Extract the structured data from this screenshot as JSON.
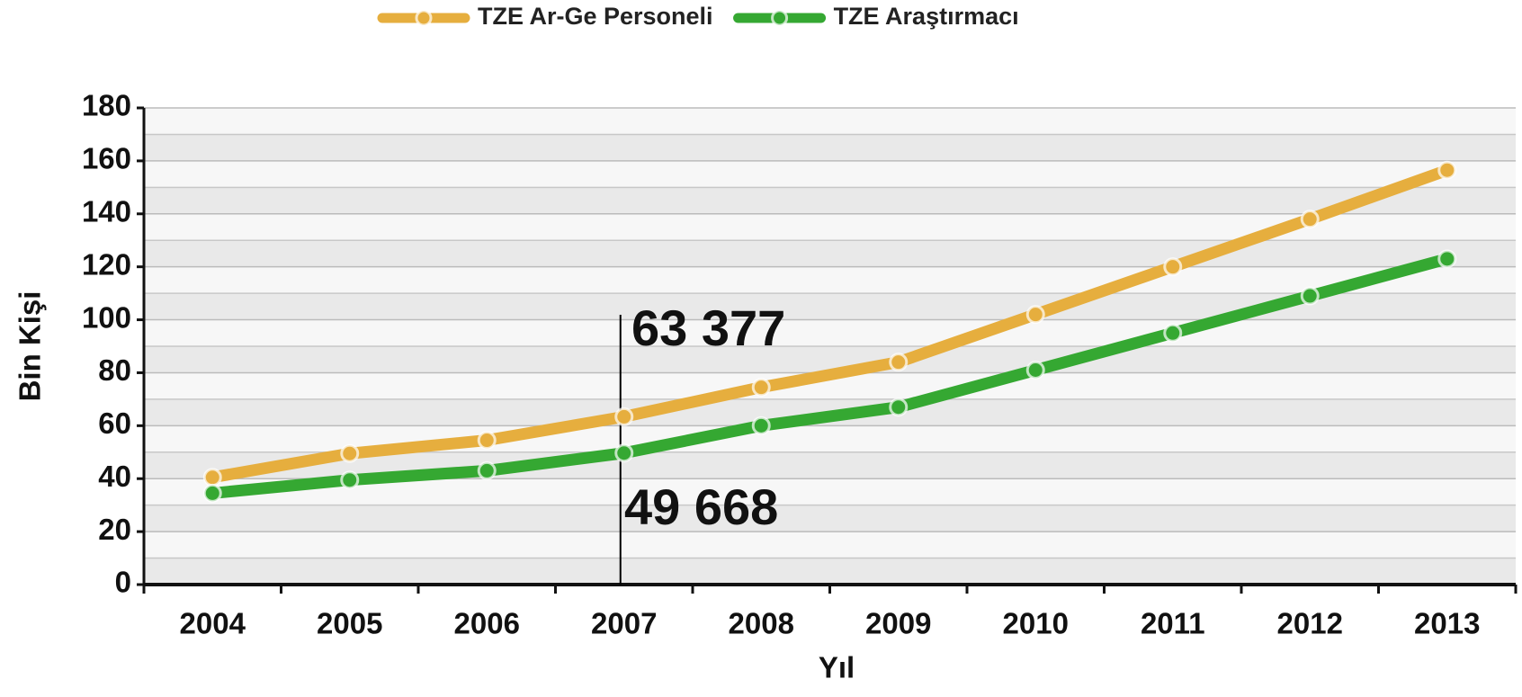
{
  "chart_data": {
    "type": "line",
    "xlabel": "Yıl",
    "ylabel": "Bin Kişi",
    "categories": [
      "2004",
      "2005",
      "2006",
      "2007",
      "2008",
      "2009",
      "2010",
      "2011",
      "2012",
      "2013"
    ],
    "series": [
      {
        "name": "TZE Ar-Ge Personeli",
        "color": "#e6ae3e",
        "values": [
          40.5,
          49.5,
          54.5,
          63.377,
          74.5,
          84,
          102,
          120,
          138,
          156.5
        ]
      },
      {
        "name": "TZE Araştırmacı",
        "color": "#35a832",
        "values": [
          34.5,
          39.5,
          43,
          49.668,
          60,
          67,
          81,
          95,
          109,
          123
        ]
      }
    ],
    "annotations": [
      {
        "text": "63 377",
        "color": "#ff6a13"
      },
      {
        "text": "49 668",
        "color": "#118a11"
      }
    ],
    "ylim": [
      0,
      180
    ],
    "yticks": [
      0,
      20,
      40,
      60,
      80,
      100,
      120,
      140,
      160,
      180
    ],
    "grid": true
  }
}
